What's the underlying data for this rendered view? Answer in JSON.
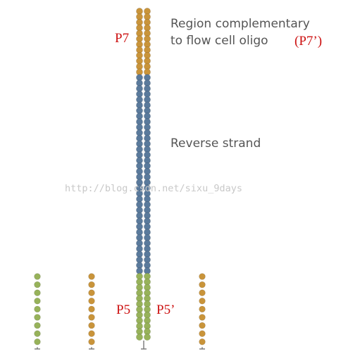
{
  "labels": {
    "region_line1": "Region complementary",
    "region_line2": "to flow cell oligo",
    "p7_prime": "(P7’)",
    "reverse_strand": "Reverse strand",
    "p7": "P7",
    "p5": "P5",
    "p5_prime": "P5’"
  },
  "watermark": "http://blog.csdn.net/sixu_9days",
  "colors": {
    "orange_bead": "#c9943a",
    "blue_bead": "#5a7a9c",
    "green_bead": "#97b25a",
    "label_red": "#cc1111",
    "label_gray": "#555555",
    "stem": "#777777"
  }
}
